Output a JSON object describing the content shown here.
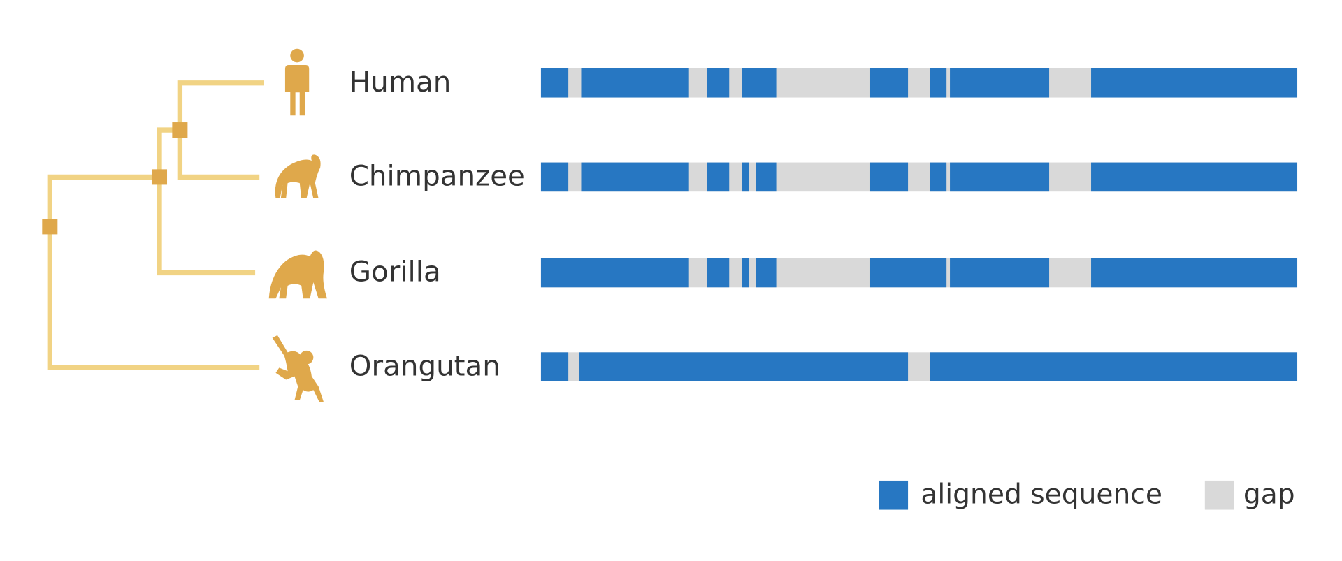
{
  "species": [
    "Human",
    "Chimpanzee",
    "Gorilla",
    "Orangutan"
  ],
  "legend": [
    "aligned sequence",
    "gap"
  ]
}
